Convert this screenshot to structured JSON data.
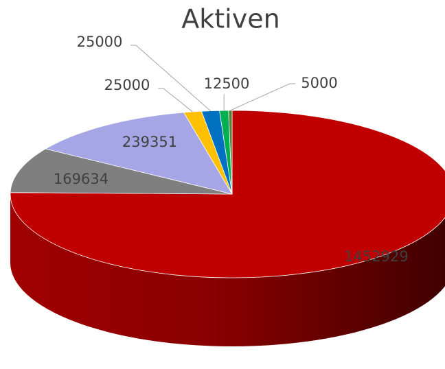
{
  "chart_data": {
    "type": "pie",
    "title": "Aktiven",
    "values": [
      1452929,
      169634,
      239351,
      25000,
      25000,
      12500,
      5000
    ],
    "colors": [
      "#c00000",
      "#7f7f7f",
      "#a6a6e6",
      "#ffc000",
      "#0070c0",
      "#00b050",
      "#548235"
    ]
  }
}
